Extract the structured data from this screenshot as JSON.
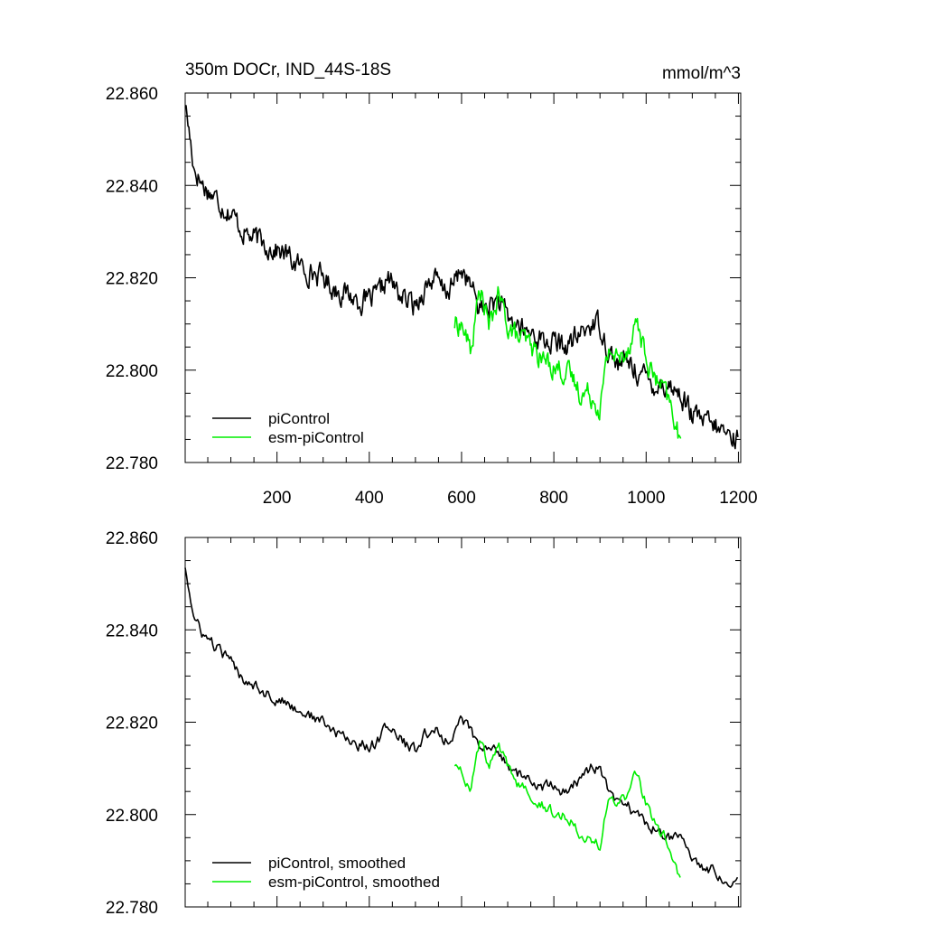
{
  "figure": {
    "title_left": "350m DOCr, IND_44S-18S",
    "title_right": "mmol/m^3"
  },
  "colors": {
    "piControl": "#000000",
    "esm_piControl": "#00ee00"
  },
  "chart_data": [
    {
      "type": "line",
      "panel": "top",
      "xlim": [
        1,
        1205
      ],
      "ylim": [
        22.78,
        22.86
      ],
      "yticks": [
        "22.860",
        "22.840",
        "22.820",
        "22.800",
        "22.780"
      ],
      "xticks": [
        "200",
        "400",
        "600",
        "800",
        "1000",
        "1200"
      ],
      "legend": [
        "piControl",
        "esm-piControl"
      ],
      "legend_position": "bottom-left",
      "series": [
        {
          "name": "piControl",
          "x": [
            1,
            20,
            40,
            60,
            80,
            100,
            120,
            140,
            160,
            180,
            200,
            220,
            240,
            260,
            280,
            300,
            320,
            340,
            360,
            380,
            400,
            420,
            440,
            460,
            480,
            500,
            520,
            540,
            560,
            580,
            600,
            620,
            640,
            660,
            680,
            700,
            720,
            740,
            760,
            780,
            800,
            820,
            840,
            860,
            880,
            900,
            920,
            940,
            960,
            980,
            1000,
            1020,
            1040,
            1060,
            1080,
            1100,
            1120,
            1140,
            1160,
            1180,
            1200
          ],
          "y": [
            22.858,
            22.844,
            22.84,
            22.838,
            22.836,
            22.834,
            22.831,
            22.829,
            22.828,
            22.827,
            22.826,
            22.825,
            22.823,
            22.822,
            22.821,
            22.82,
            22.818,
            22.817,
            22.816,
            22.815,
            22.815,
            22.816,
            22.82,
            22.817,
            22.815,
            22.814,
            22.818,
            22.82,
            22.817,
            22.818,
            22.822,
            22.818,
            22.813,
            22.814,
            22.815,
            22.811,
            22.81,
            22.808,
            22.808,
            22.806,
            22.806,
            22.805,
            22.806,
            22.808,
            22.81,
            22.81,
            22.804,
            22.801,
            22.802,
            22.8,
            22.798,
            22.797,
            22.797,
            22.796,
            22.794,
            22.79,
            22.789,
            22.788,
            22.787,
            22.786,
            22.785
          ]
        },
        {
          "name": "esm-piControl",
          "x": [
            585,
            600,
            620,
            640,
            660,
            680,
            700,
            720,
            740,
            760,
            780,
            800,
            820,
            840,
            860,
            880,
            900,
            920,
            940,
            960,
            980,
            1000,
            1020,
            1040,
            1060,
            1075
          ],
          "y": [
            22.81,
            22.81,
            22.804,
            22.818,
            22.809,
            22.816,
            22.81,
            22.807,
            22.806,
            22.804,
            22.802,
            22.801,
            22.8,
            22.798,
            22.795,
            22.795,
            22.792,
            22.805,
            22.802,
            22.805,
            22.811,
            22.802,
            22.798,
            22.795,
            22.79,
            22.784
          ]
        }
      ]
    },
    {
      "type": "line",
      "panel": "bottom",
      "xlim": [
        1,
        1205
      ],
      "ylim": [
        22.78,
        22.86
      ],
      "yticks": [
        "22.860",
        "22.840",
        "22.820",
        "22.800",
        "22.780"
      ],
      "legend": [
        "piControl, smoothed",
        "esm-piControl, smoothed"
      ],
      "legend_position": "bottom-left",
      "series": [
        {
          "name": "piControl, smoothed",
          "x": [
            1,
            20,
            40,
            60,
            80,
            100,
            120,
            140,
            160,
            180,
            200,
            220,
            240,
            260,
            280,
            300,
            320,
            340,
            360,
            380,
            400,
            420,
            440,
            460,
            480,
            500,
            520,
            540,
            560,
            580,
            600,
            620,
            640,
            660,
            680,
            700,
            720,
            740,
            760,
            780,
            800,
            820,
            840,
            860,
            880,
            900,
            920,
            940,
            960,
            980,
            1000,
            1020,
            1040,
            1060,
            1080,
            1100,
            1120,
            1140,
            1160,
            1180,
            1200
          ],
          "y": [
            22.854,
            22.842,
            22.839,
            22.837,
            22.835,
            22.833,
            22.83,
            22.829,
            22.828,
            22.826,
            22.825,
            22.824,
            22.823,
            22.822,
            22.821,
            22.82,
            22.818,
            22.817,
            22.816,
            22.815,
            22.815,
            22.816,
            22.82,
            22.817,
            22.815,
            22.814,
            22.817,
            22.819,
            22.816,
            22.817,
            22.821,
            22.818,
            22.814,
            22.814,
            22.814,
            22.811,
            22.809,
            22.808,
            22.806,
            22.806,
            22.806,
            22.805,
            22.806,
            22.808,
            22.81,
            22.81,
            22.804,
            22.802,
            22.802,
            22.8,
            22.798,
            22.797,
            22.796,
            22.795,
            22.794,
            22.791,
            22.789,
            22.788,
            22.787,
            22.786,
            22.786
          ]
        },
        {
          "name": "esm-piControl, smoothed",
          "x": [
            585,
            600,
            620,
            640,
            660,
            680,
            700,
            720,
            740,
            760,
            780,
            800,
            820,
            840,
            860,
            880,
            900,
            920,
            940,
            960,
            980,
            1000,
            1020,
            1040,
            1060,
            1075
          ],
          "y": [
            22.811,
            22.81,
            22.805,
            22.816,
            22.81,
            22.815,
            22.81,
            22.807,
            22.806,
            22.804,
            22.802,
            22.8,
            22.8,
            22.799,
            22.796,
            22.795,
            22.793,
            22.804,
            22.802,
            22.804,
            22.809,
            22.802,
            22.798,
            22.795,
            22.79,
            22.785
          ]
        }
      ]
    }
  ]
}
